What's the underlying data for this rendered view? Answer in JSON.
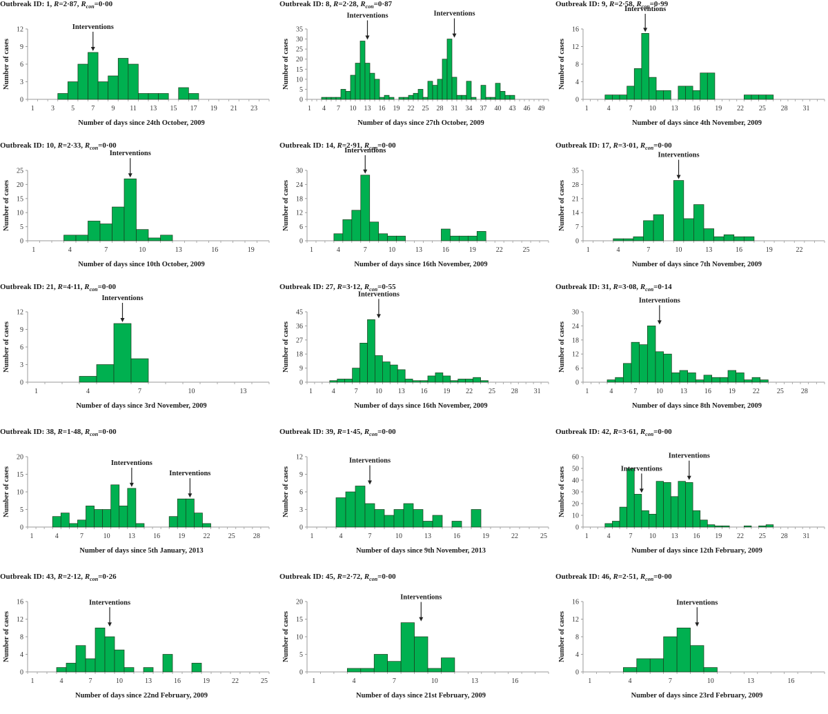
{
  "chart_data": [
    {
      "type": "bar",
      "title": "Outbreak ID: 1, R=2·87, Rcon=0·00",
      "outbreak_id": "1",
      "R": "2·87",
      "Rcon": "0·00",
      "xlabel": "Number of days since 24th October, 2009",
      "ylabel": "Number of cases",
      "xlim": [
        1,
        24
      ],
      "ylim": [
        0,
        12
      ],
      "yticks": [
        0,
        3,
        6,
        9,
        12
      ],
      "xticks": [
        1,
        3,
        5,
        7,
        9,
        11,
        13,
        15,
        17,
        19,
        21,
        23
      ],
      "x": [
        4,
        5,
        6,
        7,
        8,
        9,
        10,
        11,
        12,
        13,
        14,
        15,
        16,
        17
      ],
      "values": [
        1,
        3,
        6,
        8,
        3,
        4,
        7,
        6,
        1,
        1,
        1,
        0,
        2,
        1
      ],
      "interventions": [
        7
      ],
      "annotation_label": "Interventions",
      "grid": false
    },
    {
      "type": "bar",
      "title": "Outbreak ID: 8, R=2·28, Rcon=0·87",
      "outbreak_id": "8",
      "R": "2·28",
      "Rcon": "0·87",
      "xlabel": "Number of days since 27th October, 2009",
      "ylabel": "Number of cases",
      "xlim": [
        1,
        50
      ],
      "ylim": [
        0,
        35
      ],
      "yticks": [
        0,
        5,
        10,
        15,
        20,
        25,
        30,
        35
      ],
      "xticks": [
        1,
        4,
        7,
        10,
        13,
        16,
        19,
        22,
        25,
        28,
        31,
        34,
        37,
        40,
        43,
        46,
        49
      ],
      "x": [
        4,
        5,
        6,
        7,
        8,
        9,
        10,
        11,
        12,
        13,
        14,
        15,
        16,
        17,
        18,
        19,
        20,
        21,
        22,
        23,
        24,
        25,
        26,
        27,
        28,
        29,
        30,
        31,
        32,
        33,
        34,
        35,
        36,
        37,
        38,
        39,
        40,
        41,
        42,
        43
      ],
      "values": [
        1,
        1,
        1,
        1,
        5,
        4,
        12,
        18,
        29,
        18,
        13,
        10,
        1,
        2,
        1,
        0,
        1,
        1,
        2,
        3,
        5,
        1,
        9,
        7,
        10,
        20,
        30,
        11,
        2,
        2,
        9,
        1,
        0,
        7,
        1,
        1,
        8,
        4,
        2,
        2
      ],
      "interventions": [
        13,
        31
      ],
      "annotation_label": "Interventions",
      "grid": false
    },
    {
      "type": "bar",
      "title": "Outbreak ID: 9, R=2·58, Rcon=0·99",
      "outbreak_id": "9",
      "R": "2·58",
      "Rcon": "0·99",
      "xlabel": "Number of days since 4th November, 2009",
      "ylabel": "Number of cases",
      "xlim": [
        1,
        33
      ],
      "ylim": [
        0,
        16
      ],
      "yticks": [
        0,
        4,
        8,
        12,
        16
      ],
      "xticks": [
        1,
        4,
        7,
        10,
        13,
        16,
        19,
        22,
        25,
        28,
        31
      ],
      "x": [
        4,
        5,
        6,
        7,
        8,
        9,
        10,
        11,
        12,
        13,
        14,
        15,
        16,
        17,
        18,
        19,
        20,
        21,
        22,
        23,
        24,
        25,
        26
      ],
      "values": [
        1,
        1,
        1,
        3,
        7,
        15,
        5,
        2,
        2,
        0,
        3,
        3,
        2,
        6,
        6,
        0,
        0,
        0,
        0,
        1,
        1,
        1,
        1
      ],
      "interventions": [
        9
      ],
      "annotation_label": "Interventions",
      "grid": false
    },
    {
      "type": "bar",
      "title": "Outbreak ID: 10, R=2·33, Rcon=0·00",
      "outbreak_id": "10",
      "R": "2·33",
      "Rcon": "0·00",
      "xlabel": "Number of days since 10th October, 2009",
      "ylabel": "Number of cases",
      "xlim": [
        1,
        20
      ],
      "ylim": [
        0,
        25
      ],
      "yticks": [
        0,
        5,
        10,
        15,
        20,
        25
      ],
      "xticks": [
        1,
        4,
        7,
        10,
        13,
        16,
        19
      ],
      "x": [
        4,
        5,
        6,
        7,
        8,
        9,
        10,
        11,
        12
      ],
      "values": [
        2,
        2,
        7,
        6,
        12,
        22,
        4,
        1,
        2
      ],
      "interventions": [
        9
      ],
      "annotation_label": "Interventions",
      "grid": false
    },
    {
      "type": "bar",
      "title": "Outbreak ID: 14, R=2·91, Rcon=0·00",
      "outbreak_id": "14",
      "R": "2·91",
      "Rcon": "0·00",
      "xlabel": "Number of days since 16th November, 2009",
      "ylabel": "Number of cases",
      "xlim": [
        1,
        27
      ],
      "ylim": [
        0,
        30
      ],
      "yticks": [
        0,
        6,
        12,
        18,
        24,
        30
      ],
      "xticks": [
        1,
        4,
        7,
        10,
        13,
        16,
        19,
        22,
        25
      ],
      "x": [
        4,
        5,
        6,
        7,
        8,
        9,
        10,
        11,
        12,
        13,
        14,
        15,
        16,
        17,
        18,
        19,
        20
      ],
      "values": [
        3,
        9,
        13,
        28,
        8,
        3,
        2,
        2,
        0,
        0,
        0,
        0,
        5,
        2,
        2,
        2,
        4
      ],
      "interventions": [
        7
      ],
      "annotation_label": "Interventions",
      "grid": false
    },
    {
      "type": "bar",
      "title": "Outbreak ID: 17, R=3·01, Rcon=0·00",
      "outbreak_id": "17",
      "R": "3·01",
      "Rcon": "0·00",
      "xlabel": "Number of days since 7th November, 2009",
      "ylabel": "Number of cases",
      "xlim": [
        1,
        24
      ],
      "ylim": [
        0,
        35
      ],
      "yticks": [
        0,
        7,
        14,
        21,
        28,
        35
      ],
      "xticks": [
        1,
        4,
        7,
        10,
        13,
        16,
        19,
        22
      ],
      "x": [
        4,
        5,
        6,
        7,
        8,
        9,
        10,
        11,
        12,
        13,
        14,
        15,
        16,
        17
      ],
      "values": [
        1,
        1,
        2,
        10,
        13,
        0,
        30,
        11,
        18,
        6,
        2,
        3,
        2,
        2
      ],
      "interventions": [
        10
      ],
      "annotation_label": "Interventions",
      "grid": false
    },
    {
      "type": "bar",
      "title": "Outbreak ID: 21, R=4·11, Rcon=0·00",
      "outbreak_id": "21",
      "R": "4·11",
      "Rcon": "0·00",
      "xlabel": "Number of days since 3rd November, 2009",
      "ylabel": "Number of cases",
      "xlim": [
        1,
        14
      ],
      "ylim": [
        0,
        12
      ],
      "yticks": [
        0,
        3,
        6,
        9,
        12
      ],
      "xticks": [
        1,
        4,
        7,
        10,
        13
      ],
      "x": [
        4,
        5,
        6,
        7
      ],
      "values": [
        1,
        3,
        10,
        4
      ],
      "interventions": [
        6
      ],
      "annotation_label": "Interventions",
      "grid": false
    },
    {
      "type": "bar",
      "title": "Outbreak ID: 27, R=3·12, Rcon=0·55",
      "outbreak_id": "27",
      "R": "3·12",
      "Rcon": "0·55",
      "xlabel": "Number of days since 16th November, 2009",
      "ylabel": "Number of cases",
      "xlim": [
        1,
        32
      ],
      "ylim": [
        0,
        45
      ],
      "yticks": [
        0,
        9,
        18,
        27,
        36,
        45
      ],
      "xticks": [
        1,
        4,
        7,
        10,
        13,
        16,
        19,
        22,
        25,
        28,
        31
      ],
      "x": [
        4,
        5,
        6,
        7,
        8,
        9,
        10,
        11,
        12,
        13,
        14,
        15,
        16,
        17,
        18,
        19,
        20,
        21,
        22,
        23,
        24
      ],
      "values": [
        1,
        2,
        2,
        9,
        25,
        40,
        17,
        13,
        11,
        8,
        2,
        1,
        1,
        4,
        6,
        4,
        1,
        2,
        2,
        3,
        1
      ],
      "interventions": [
        10
      ],
      "annotation_label": "Interventions",
      "grid": false
    },
    {
      "type": "bar",
      "title": "Outbreak ID: 31, R=3·08, Rcon=0·14",
      "outbreak_id": "31",
      "R": "3·08",
      "Rcon": "0·14",
      "xlabel": "Number of days since 8th November, 2009",
      "ylabel": "Number of cases",
      "xlim": [
        1,
        30
      ],
      "ylim": [
        0,
        30
      ],
      "yticks": [
        0,
        6,
        12,
        18,
        24,
        30
      ],
      "xticks": [
        1,
        4,
        7,
        10,
        13,
        16,
        19,
        22,
        25,
        28
      ],
      "x": [
        4,
        5,
        6,
        7,
        8,
        9,
        10,
        11,
        12,
        13,
        14,
        15,
        16,
        17,
        18,
        19,
        20,
        21,
        22,
        23
      ],
      "values": [
        1,
        2,
        8,
        17,
        16,
        24,
        13,
        12,
        4,
        5,
        4,
        1,
        3,
        2,
        2,
        5,
        4,
        1,
        2,
        1
      ],
      "interventions": [
        10
      ],
      "annotation_label": "Interventions",
      "grid": false
    },
    {
      "type": "bar",
      "title": "Outbreak ID: 38, R=1·48, Rcon=0·00",
      "outbreak_id": "38",
      "R": "1·48",
      "Rcon": "0·00",
      "xlabel": "Number of days since 5th January, 2013",
      "ylabel": "Number of cases",
      "xlim": [
        1,
        29
      ],
      "ylim": [
        0,
        20
      ],
      "yticks": [
        0,
        5,
        10,
        15,
        20
      ],
      "xticks": [
        1,
        4,
        7,
        10,
        13,
        16,
        19,
        22,
        25,
        28
      ],
      "x": [
        4,
        5,
        6,
        7,
        8,
        9,
        10,
        11,
        12,
        13,
        14,
        15,
        16,
        17,
        18,
        19,
        20,
        21,
        22
      ],
      "values": [
        3,
        4,
        1,
        2,
        6,
        5,
        5,
        12,
        6,
        11,
        1,
        0,
        0,
        0,
        3,
        8,
        8,
        4,
        1
      ],
      "interventions": [
        13,
        20
      ],
      "annotation_label": "Interventions",
      "grid": false
    },
    {
      "type": "bar",
      "title": "Outbreak ID: 39, R=1·45, Rcon=0·00",
      "outbreak_id": "39",
      "R": "1·45",
      "Rcon": "0·00",
      "xlabel": "Number of days since 9th November, 2013",
      "ylabel": "Number of cases",
      "xlim": [
        1,
        25
      ],
      "ylim": [
        0,
        12
      ],
      "yticks": [
        0,
        3,
        6,
        9,
        12
      ],
      "xticks": [
        1,
        4,
        7,
        10,
        13,
        16,
        19,
        22,
        25
      ],
      "x": [
        4,
        5,
        6,
        7,
        8,
        9,
        10,
        11,
        12,
        13,
        14,
        15,
        16,
        17,
        18
      ],
      "values": [
        5,
        6,
        7,
        4,
        3,
        2,
        3,
        4,
        3,
        1,
        2,
        0,
        1,
        0,
        3
      ],
      "interventions": [
        7
      ],
      "annotation_label": "Interventions",
      "grid": false
    },
    {
      "type": "bar",
      "title": "Outbreak ID: 42, R=3·61, Rcon=0·00",
      "outbreak_id": "42",
      "R": "3·61",
      "Rcon": "0·00",
      "xlabel": "Number of days since 12th February, 2009",
      "ylabel": "Number of cases",
      "xlim": [
        1,
        33
      ],
      "ylim": [
        0,
        60
      ],
      "yticks": [
        0,
        10,
        20,
        30,
        40,
        50,
        60
      ],
      "xticks": [
        1,
        4,
        7,
        10,
        13,
        16,
        19,
        22,
        25,
        28,
        31
      ],
      "x": [
        4,
        5,
        6,
        7,
        8,
        9,
        10,
        11,
        12,
        13,
        14,
        15,
        16,
        17,
        18,
        19,
        20,
        21,
        22,
        23,
        24,
        25,
        26
      ],
      "values": [
        3,
        5,
        17,
        50,
        28,
        14,
        11,
        39,
        38,
        26,
        39,
        38,
        14,
        6,
        2,
        1,
        1,
        0,
        0,
        1,
        0,
        1,
        2
      ],
      "interventions": [
        8.5,
        15
      ],
      "annotation_label": "Interventions",
      "grid": false
    },
    {
      "type": "bar",
      "title": "Outbreak ID: 43, R=2·12, Rcon=0·26",
      "outbreak_id": "43",
      "R": "2·12",
      "Rcon": "0·26",
      "xlabel": "Number of days since 22nd February, 2009",
      "ylabel": "Number of cases",
      "xlim": [
        1,
        25
      ],
      "ylim": [
        0,
        16
      ],
      "yticks": [
        0,
        4,
        8,
        12,
        16
      ],
      "xticks": [
        1,
        4,
        7,
        10,
        13,
        16,
        19,
        22,
        25
      ],
      "x": [
        4,
        5,
        6,
        7,
        8,
        9,
        10,
        11,
        12,
        13,
        14,
        15,
        16,
        17,
        18
      ],
      "values": [
        1,
        2,
        6,
        3,
        10,
        8,
        5,
        1,
        0,
        1,
        0,
        4,
        0,
        0,
        2
      ],
      "interventions": [
        9
      ],
      "annotation_label": "Interventions",
      "grid": false
    },
    {
      "type": "bar",
      "title": "Outbreak ID: 45, R=2·72, Rcon=0·00",
      "outbreak_id": "45",
      "R": "2·72",
      "Rcon": "0·00",
      "xlabel": "Number of days since 21st February, 2009",
      "ylabel": "Number of cases",
      "xlim": [
        1,
        18
      ],
      "ylim": [
        0,
        20
      ],
      "yticks": [
        0,
        5,
        10,
        15,
        20
      ],
      "xticks": [
        1,
        4,
        7,
        10,
        13,
        16
      ],
      "x": [
        4,
        5,
        6,
        7,
        8,
        9,
        10,
        11
      ],
      "values": [
        1,
        1,
        5,
        3,
        14,
        10,
        1,
        4
      ],
      "interventions": [
        9
      ],
      "annotation_label": "Interventions",
      "grid": false
    },
    {
      "type": "bar",
      "title": "Outbreak ID: 46, R=2·51, Rcon=0·00",
      "outbreak_id": "46",
      "R": "2·51",
      "Rcon": "0·00",
      "xlabel": "Number of days since 23rd February, 2009",
      "ylabel": "Number of cases",
      "xlim": [
        1,
        18
      ],
      "ylim": [
        0,
        16
      ],
      "yticks": [
        0,
        4,
        8,
        12,
        16
      ],
      "xticks": [
        1,
        4,
        7,
        10,
        13,
        16
      ],
      "x": [
        4,
        5,
        6,
        7,
        8,
        9,
        10
      ],
      "values": [
        1,
        3,
        3,
        8,
        10,
        6,
        1
      ],
      "interventions": [
        9
      ],
      "annotation_label": "Interventions",
      "grid": false
    }
  ],
  "colors": {
    "bar_fill": "#00b050",
    "bar_stroke": "#1d3a1d",
    "axis": "#9a9a9a",
    "text": "#1a1a1a"
  },
  "labels": {
    "outbreak_prefix": "Outbreak ID: ",
    "r_label": "R",
    "rcon_label": "R",
    "rcon_sub": "con"
  }
}
